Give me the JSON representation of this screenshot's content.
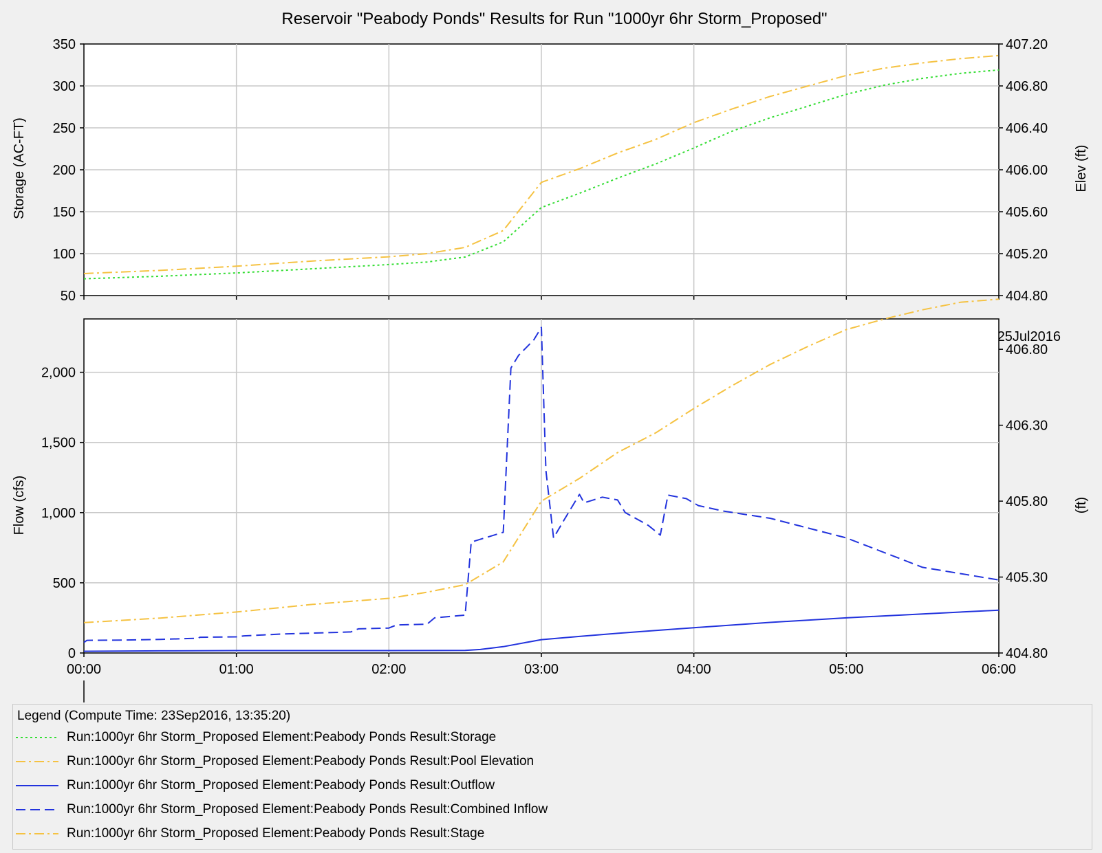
{
  "chart_data": [
    {
      "type": "line",
      "title": "Reservoir \"Peabody Ponds\" Results for Run \"1000yr 6hr Storm_Proposed\"",
      "ylabel": "Storage (AC-FT)",
      "y2label": "Elev (ft)",
      "x_ticks": [
        "00:00",
        "01:00",
        "02:00",
        "03:00",
        "04:00",
        "05:00",
        "06:00"
      ],
      "x_date_label": "25Jul2016",
      "xlim": [
        0,
        6
      ],
      "ylim": [
        50,
        350
      ],
      "y_ticks": [
        "50",
        "100",
        "150",
        "200",
        "250",
        "300",
        "350"
      ],
      "y2lim": [
        404.8,
        407.2
      ],
      "y2_ticks": [
        "404.80",
        "405.20",
        "405.60",
        "406.00",
        "406.40",
        "406.80",
        "407.20"
      ],
      "grid": true,
      "series": [
        {
          "name": "Storage",
          "axis": "left",
          "color": "#33dd33",
          "dash": "dotted",
          "x": [
            0,
            0.5,
            1,
            1.5,
            2,
            2.25,
            2.5,
            2.75,
            3,
            3.25,
            3.5,
            3.75,
            4,
            4.25,
            4.5,
            4.75,
            5,
            5.25,
            5.5,
            5.75,
            6
          ],
          "y": [
            70,
            73,
            77,
            82,
            87,
            90,
            96,
            114,
            155,
            172,
            190,
            207,
            226,
            246,
            262,
            276,
            290,
            301,
            309,
            315,
            319
          ]
        },
        {
          "name": "Pool Elevation",
          "axis": "right",
          "color": "#f5c242",
          "dash": "dashdot",
          "x": [
            0,
            0.5,
            1,
            1.5,
            2,
            2.25,
            2.5,
            2.75,
            3,
            3.25,
            3.5,
            3.75,
            4,
            4.25,
            4.5,
            4.75,
            5,
            5.25,
            5.5,
            5.75,
            6
          ],
          "y": [
            405.01,
            405.04,
            405.08,
            405.13,
            405.17,
            405.2,
            405.26,
            405.42,
            405.88,
            406.01,
            406.16,
            406.29,
            406.45,
            406.58,
            406.7,
            406.8,
            406.9,
            406.97,
            407.02,
            407.06,
            407.09
          ]
        }
      ]
    },
    {
      "type": "line",
      "ylabel": "Flow (cfs)",
      "y2label": "(ft)",
      "x_ticks": [
        "00:00",
        "01:00",
        "02:00",
        "03:00",
        "04:00",
        "05:00",
        "06:00"
      ],
      "xlim": [
        0,
        6
      ],
      "ylim": [
        0,
        2380
      ],
      "y_ticks": [
        "0",
        "500",
        "1,000",
        "1,500",
        "2,000"
      ],
      "y2lim": [
        404.8,
        407.0
      ],
      "y2_ticks": [
        "404.80",
        "405.30",
        "405.80",
        "406.30",
        "406.80"
      ],
      "grid": true,
      "series": [
        {
          "name": "Outflow",
          "axis": "left",
          "color": "#2233dd",
          "dash": "solid",
          "x": [
            0,
            0.5,
            1,
            1.5,
            2,
            2.5,
            2.6,
            2.75,
            3,
            3.25,
            3.5,
            3.75,
            4,
            4.5,
            5,
            5.5,
            6
          ],
          "y": [
            12,
            15,
            17,
            17,
            17,
            18,
            25,
            45,
            95,
            118,
            140,
            160,
            180,
            218,
            250,
            278,
            305
          ]
        },
        {
          "name": "Combined Inflow",
          "axis": "left",
          "color": "#2233dd",
          "dash": "dashed",
          "x": [
            0,
            0.02,
            0.25,
            0.5,
            0.75,
            0.76,
            1,
            1.05,
            1.3,
            1.6,
            1.75,
            1.8,
            2,
            2.05,
            2.25,
            2.3,
            2.45,
            2.5,
            2.54,
            2.6,
            2.75,
            2.8,
            2.85,
            2.95,
            3.0,
            3.03,
            3.08,
            3.15,
            3.25,
            3.28,
            3.4,
            3.5,
            3.55,
            3.7,
            3.78,
            3.83,
            3.95,
            4.03,
            4.2,
            4.5,
            5.0,
            5.5,
            6.0
          ],
          "y": [
            75,
            90,
            92,
            97,
            105,
            112,
            115,
            122,
            135,
            145,
            150,
            172,
            178,
            200,
            205,
            250,
            265,
            270,
            790,
            810,
            860,
            2030,
            2120,
            2230,
            2320,
            1300,
            820,
            950,
            1130,
            1070,
            1110,
            1090,
            1000,
            910,
            840,
            1125,
            1100,
            1050,
            1010,
            960,
            820,
            610,
            520
          ]
        },
        {
          "name": "Stage",
          "axis": "right",
          "color": "#f5c242",
          "dash": "dashdot",
          "x": [
            0,
            0.5,
            1,
            1.5,
            2,
            2.25,
            2.5,
            2.75,
            3,
            3.25,
            3.5,
            3.75,
            4,
            4.25,
            4.5,
            4.75,
            5,
            5.25,
            5.5,
            5.75,
            6
          ],
          "y": [
            405.0,
            405.03,
            405.07,
            405.12,
            405.16,
            405.2,
            405.25,
            405.4,
            405.8,
            405.95,
            406.12,
            406.25,
            406.41,
            406.56,
            406.7,
            406.82,
            406.93,
            407.0,
            407.06,
            407.11,
            407.13
          ]
        }
      ]
    }
  ],
  "legend": {
    "title": "Legend (Compute Time: 23Sep2016, 13:35:20)",
    "entries": [
      {
        "label": "Run:1000yr 6hr Storm_Proposed Element:Peabody Ponds Result:Storage",
        "color": "#33dd33",
        "dash": "dotted"
      },
      {
        "label": "Run:1000yr 6hr Storm_Proposed Element:Peabody Ponds Result:Pool Elevation",
        "color": "#f5c242",
        "dash": "dashdot"
      },
      {
        "label": "Run:1000yr 6hr Storm_Proposed Element:Peabody Ponds Result:Outflow",
        "color": "#2233dd",
        "dash": "solid"
      },
      {
        "label": "Run:1000yr 6hr Storm_Proposed Element:Peabody Ponds Result:Combined Inflow",
        "color": "#2233dd",
        "dash": "dashed"
      },
      {
        "label": "Run:1000yr 6hr Storm_Proposed Element:Peabody Ponds Result:Stage",
        "color": "#f5c242",
        "dash": "dashdot"
      }
    ]
  }
}
